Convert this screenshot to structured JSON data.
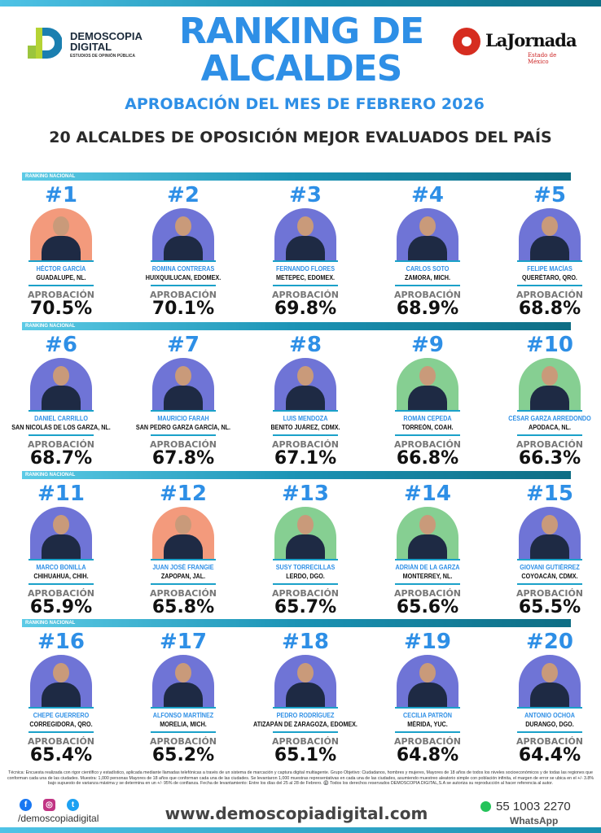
{
  "header": {
    "brand_left": [
      "DEMOSCOPIA",
      "DIGITAL"
    ],
    "brand_left_tagline": "ESTUDIOS DE OPINIÓN PÚBLICA",
    "title": "RANKING DE ALCALDES",
    "subtitle": "APROBACIÓN DEL MES DE FEBRERO 2026",
    "heading": "20 ALCALDES DE OPOSICIÓN MEJOR EVALUADOS DEL PAÍS",
    "brand_right": "LaJornada",
    "brand_right_sub": "Estado de México"
  },
  "band_label": "RANKING NACIONAL",
  "approval_label": "APROBACIÓN",
  "colors": {
    "accent": "#2e8fe6",
    "band": "#1b93b5",
    "pan_bg": "#6f74d6",
    "pri_bg": "#86cf92",
    "mc_bg": "#f39a7c"
  },
  "mayors": [
    {
      "rank": "#1",
      "name": "HÉCTOR GARCÍA",
      "city": "GUADALUPE, NL.",
      "approval": "70.5%",
      "bg": "mc_bg"
    },
    {
      "rank": "#2",
      "name": "ROMINA CONTRERAS",
      "city": "HUIXQUILUCAN, EDOMEX.",
      "approval": "70.1%",
      "bg": "pan_bg"
    },
    {
      "rank": "#3",
      "name": "FERNANDO FLORES",
      "city": "METEPEC, EDOMEX.",
      "approval": "69.8%",
      "bg": "pan_bg"
    },
    {
      "rank": "#4",
      "name": "CARLOS SOTO",
      "city": "ZAMORA, MICH.",
      "approval": "68.9%",
      "bg": "pan_bg"
    },
    {
      "rank": "#5",
      "name": "FELIPE MACÍAS",
      "city": "QUERÉTARO, QRO.",
      "approval": "68.8%",
      "bg": "pan_bg"
    },
    {
      "rank": "#6",
      "name": "DANIEL CARRILLO",
      "city": "SAN NICOLÁS DE LOS GARZA, NL.",
      "approval": "68.7%",
      "bg": "pan_bg"
    },
    {
      "rank": "#7",
      "name": "MAURICIO FARAH",
      "city": "SAN PEDRO GARZA GARCÍA, NL.",
      "approval": "67.8%",
      "bg": "pan_bg"
    },
    {
      "rank": "#8",
      "name": "LUIS MENDOZA",
      "city": "BENITO JUÁREZ, CDMX.",
      "approval": "67.1%",
      "bg": "pan_bg"
    },
    {
      "rank": "#9",
      "name": "ROMÁN CEPEDA",
      "city": "TORREÓN, COAH.",
      "approval": "66.8%",
      "bg": "pri_bg"
    },
    {
      "rank": "#10",
      "name": "CÉSAR GARZA ARREDONDO",
      "city": "APODACA, NL.",
      "approval": "66.3%",
      "bg": "pri_bg"
    },
    {
      "rank": "#11",
      "name": "MARCO BONILLA",
      "city": "CHIHUAHUA, CHIH.",
      "approval": "65.9%",
      "bg": "pan_bg"
    },
    {
      "rank": "#12",
      "name": "JUAN JOSÉ FRANGIE",
      "city": "ZAPOPAN, JAL.",
      "approval": "65.8%",
      "bg": "mc_bg"
    },
    {
      "rank": "#13",
      "name": "SUSY TORRECILLAS",
      "city": "LERDO, DGO.",
      "approval": "65.7%",
      "bg": "pri_bg"
    },
    {
      "rank": "#14",
      "name": "ADRIÁN DE LA GARZA",
      "city": "MONTERREY, NL.",
      "approval": "65.6%",
      "bg": "pri_bg"
    },
    {
      "rank": "#15",
      "name": "GIOVANI GUTIÉRREZ",
      "city": "COYOACÁN, CDMX.",
      "approval": "65.5%",
      "bg": "pan_bg"
    },
    {
      "rank": "#16",
      "name": "CHEPE GUERRERO",
      "city": "CORREGIDORA, QRO.",
      "approval": "65.4%",
      "bg": "pan_bg"
    },
    {
      "rank": "#17",
      "name": "ALFONSO MARTÍNEZ",
      "city": "MORELIA, MICH.",
      "approval": "65.2%",
      "bg": "pan_bg"
    },
    {
      "rank": "#18",
      "name": "PEDRO RODRÍGUEZ",
      "city": "ATIZAPÁN DE ZARAGOZA, EDOMEX.",
      "approval": "65.1%",
      "bg": "pan_bg"
    },
    {
      "rank": "#19",
      "name": "CECILIA PATRÓN",
      "city": "MÉRIDA, YUC.",
      "approval": "64.8%",
      "bg": "pan_bg"
    },
    {
      "rank": "#20",
      "name": "ANTONIO OCHOA",
      "city": "DURANGO, DGO.",
      "approval": "64.4%",
      "bg": "pan_bg"
    }
  ],
  "footer": {
    "methodology": "Técnica: Encuesta realizada con rigor científico y estadístico, aplicada mediante llamadas telefónicas a través de un sistema de marcación y captura digital multiagente. Grupo Objetivo: Ciudadanos, hombres y mujeres, Mayores de 18 años de todos los niveles socioeconómicos y de todas las regiones que conforman cada una de las ciudades. Muestra: 1,000 personas Mayores de 18 años que conforman cada una de las ciudades. Se levantaron 1,000 muestras representativas en cada una de las ciudades, asumiendo muestreo aleatorio simple con población infinita, el margen de error se ubica en el +/- 3.8% bajo supuesto de varianza máxima y se determina en un +/- 95% de confianza. Fecha de levantamiento: Entre los días del 25 al 28 de Febrero. ©️ Todos los derechos reservados DEMOSCOPIA DIGITAL,S.A se autoriza su reproducción al hacer referencia al autor.",
    "social_icons": [
      "facebook-icon",
      "instagram-icon",
      "twitter-icon"
    ],
    "handle": "/demoscopiadigital",
    "website": "www.demoscopiadigital.com",
    "phone": "55 1003 2270",
    "whatsapp_label": "WhatsApp"
  }
}
